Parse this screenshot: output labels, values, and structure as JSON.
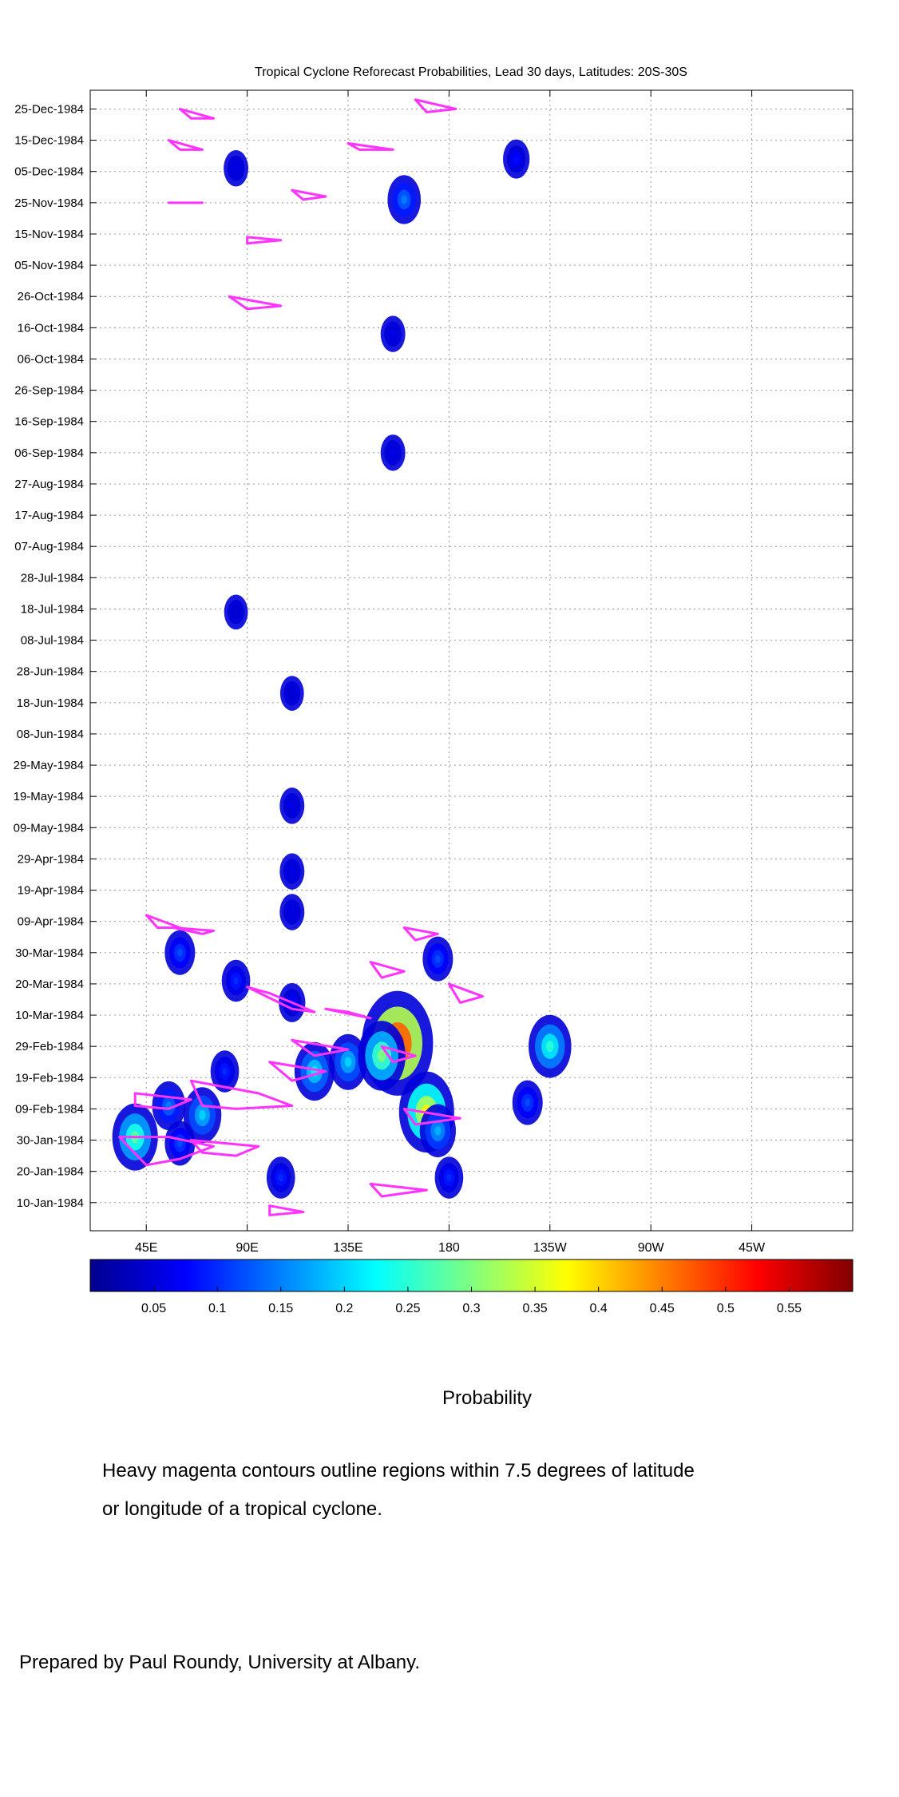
{
  "chart_data": {
    "type": "heatmap",
    "title": "Tropical Cyclone Reforecast Probabilities, Lead 30 days, Latitudes: 20S-30S",
    "x_axis": {
      "range_deg_east": [
        20,
        360
      ],
      "tick_positions_deg_east": [
        45,
        90,
        135,
        180,
        225,
        270,
        315
      ],
      "tick_labels": [
        "45E",
        "90E",
        "135E",
        "180",
        "135W",
        "90W",
        "45W"
      ]
    },
    "y_axis": {
      "range": [
        "1984-01-01",
        "1984-12-31"
      ],
      "tick_dates": [
        "1984-01-10",
        "1984-01-20",
        "1984-01-30",
        "1984-02-09",
        "1984-02-19",
        "1984-02-29",
        "1984-03-10",
        "1984-03-20",
        "1984-03-30",
        "1984-04-09",
        "1984-04-19",
        "1984-04-29",
        "1984-05-09",
        "1984-05-19",
        "1984-05-29",
        "1984-06-08",
        "1984-06-18",
        "1984-06-28",
        "1984-07-08",
        "1984-07-18",
        "1984-07-28",
        "1984-08-07",
        "1984-08-17",
        "1984-08-27",
        "1984-09-06",
        "1984-09-16",
        "1984-09-26",
        "1984-10-06",
        "1984-10-16",
        "1984-10-26",
        "1984-11-05",
        "1984-11-15",
        "1984-11-25",
        "1984-12-05",
        "1984-12-15",
        "1984-12-25"
      ],
      "tick_labels": [
        "10-Jan-1984",
        "20-Jan-1984",
        "30-Jan-1984",
        "09-Feb-1984",
        "19-Feb-1984",
        "29-Feb-1984",
        "10-Mar-1984",
        "20-Mar-1984",
        "30-Mar-1984",
        "09-Apr-1984",
        "19-Apr-1984",
        "29-Apr-1984",
        "09-May-1984",
        "19-May-1984",
        "29-May-1984",
        "08-Jun-1984",
        "18-Jun-1984",
        "28-Jun-1984",
        "08-Jul-1984",
        "18-Jul-1984",
        "28-Jul-1984",
        "07-Aug-1984",
        "17-Aug-1984",
        "27-Aug-1984",
        "06-Sep-1984",
        "16-Sep-1984",
        "26-Sep-1984",
        "06-Oct-1984",
        "16-Oct-1984",
        "26-Oct-1984",
        "05-Nov-1984",
        "15-Nov-1984",
        "25-Nov-1984",
        "05-Dec-1984",
        "15-Dec-1984",
        "25-Dec-1984"
      ]
    },
    "grid": true,
    "colorbar": {
      "label": "Probability",
      "range": [
        0,
        0.6
      ],
      "tick_values": [
        0.05,
        0.1,
        0.15,
        0.2,
        0.25,
        0.3,
        0.35,
        0.4,
        0.45,
        0.5,
        0.55
      ],
      "tick_labels": [
        "0.05",
        "0.1",
        "0.15",
        "0.2",
        "0.25",
        "0.3",
        "0.35",
        "0.4",
        "0.45",
        "0.5",
        "0.55"
      ],
      "colormap": "jet"
    },
    "probability_blobs": [
      {
        "lon": 60,
        "date": "1984-01-29",
        "p": 0.12
      },
      {
        "lon": 40,
        "date": "1984-01-31",
        "p": 0.28
      },
      {
        "lon": 70,
        "date": "1984-02-07",
        "p": 0.2
      },
      {
        "lon": 55,
        "date": "1984-02-10",
        "p": 0.15
      },
      {
        "lon": 80,
        "date": "1984-02-21",
        "p": 0.1
      },
      {
        "lon": 120,
        "date": "1984-02-21",
        "p": 0.22
      },
      {
        "lon": 135,
        "date": "1984-02-24",
        "p": 0.2
      },
      {
        "lon": 157,
        "date": "1984-03-01",
        "p": 0.55
      },
      {
        "lon": 150,
        "date": "1984-02-26",
        "p": 0.3
      },
      {
        "lon": 170,
        "date": "1984-02-08",
        "p": 0.38
      },
      {
        "lon": 175,
        "date": "1984-02-02",
        "p": 0.18
      },
      {
        "lon": 225,
        "date": "1984-02-29",
        "p": 0.25
      },
      {
        "lon": 215,
        "date": "1984-02-11",
        "p": 0.12
      },
      {
        "lon": 85,
        "date": "1984-03-21",
        "p": 0.1
      },
      {
        "lon": 175,
        "date": "1984-03-28",
        "p": 0.12
      },
      {
        "lon": 60,
        "date": "1984-03-30",
        "p": 0.12
      },
      {
        "lon": 110,
        "date": "1984-03-14",
        "p": 0.08
      },
      {
        "lon": 105,
        "date": "1984-01-18",
        "p": 0.1
      },
      {
        "lon": 180,
        "date": "1984-01-18",
        "p": 0.1
      },
      {
        "lon": 110,
        "date": "1984-04-12",
        "p": 0.06
      },
      {
        "lon": 110,
        "date": "1984-04-25",
        "p": 0.06
      },
      {
        "lon": 110,
        "date": "1984-05-16",
        "p": 0.06
      },
      {
        "lon": 110,
        "date": "1984-06-21",
        "p": 0.05
      },
      {
        "lon": 155,
        "date": "1984-09-06",
        "p": 0.06
      },
      {
        "lon": 155,
        "date": "1984-10-14",
        "p": 0.06
      },
      {
        "lon": 160,
        "date": "1984-11-26",
        "p": 0.15
      },
      {
        "lon": 210,
        "date": "1984-12-09",
        "p": 0.08
      },
      {
        "lon": 85,
        "date": "1984-12-06",
        "p": 0.06
      },
      {
        "lon": 85,
        "date": "1984-07-17",
        "p": 0.05
      }
    ],
    "cyclone_contours": [
      [
        [
          33,
          "1984-01-31"
        ],
        [
          55,
          "1984-01-31"
        ],
        [
          75,
          "1984-01-28"
        ],
        [
          60,
          "1984-01-24"
        ],
        [
          45,
          "1984-01-22"
        ]
      ],
      [
        [
          65,
          "1984-01-30"
        ],
        [
          95,
          "1984-01-28"
        ],
        [
          85,
          "1984-01-25"
        ],
        [
          70,
          "1984-01-26"
        ]
      ],
      [
        [
          40,
          "1984-02-14"
        ],
        [
          65,
          "1984-02-12"
        ],
        [
          55,
          "1984-02-09"
        ],
        [
          40,
          "1984-02-10"
        ]
      ],
      [
        [
          65,
          "1984-02-18"
        ],
        [
          95,
          "1984-02-14"
        ],
        [
          110,
          "1984-02-10"
        ],
        [
          85,
          "1984-02-09"
        ],
        [
          70,
          "1984-02-10"
        ]
      ],
      [
        [
          100,
          "1984-02-24"
        ],
        [
          125,
          "1984-02-21"
        ],
        [
          110,
          "1984-02-18"
        ]
      ],
      [
        [
          110,
          "1984-03-02"
        ],
        [
          135,
          "1984-02-28"
        ],
        [
          120,
          "1984-02-26"
        ]
      ],
      [
        [
          90,
          "1984-03-19"
        ],
        [
          110,
          "1984-03-12"
        ],
        [
          120,
          "1984-03-11"
        ],
        [
          100,
          "1984-03-17"
        ]
      ],
      [
        [
          125,
          "1984-03-12"
        ],
        [
          145,
          "1984-03-09"
        ],
        [
          135,
          "1984-03-11"
        ]
      ],
      [
        [
          145,
          "1984-03-27"
        ],
        [
          160,
          "1984-03-24"
        ],
        [
          150,
          "1984-03-22"
        ]
      ],
      [
        [
          160,
          "1984-04-07"
        ],
        [
          175,
          "1984-04-05"
        ],
        [
          165,
          "1984-04-03"
        ]
      ],
      [
        [
          45,
          "1984-04-11"
        ],
        [
          60,
          "1984-04-07"
        ],
        [
          50,
          "1984-04-07"
        ]
      ],
      [
        [
          57,
          "1984-04-07"
        ],
        [
          75,
          "1984-04-06"
        ],
        [
          70,
          "1984-04-05"
        ]
      ],
      [
        [
          180,
          "1984-03-20"
        ],
        [
          195,
          "1984-03-16"
        ],
        [
          185,
          "1984-03-14"
        ]
      ],
      [
        [
          150,
          "1984-02-29"
        ],
        [
          165,
          "1984-02-26"
        ],
        [
          155,
          "1984-02-24"
        ]
      ],
      [
        [
          160,
          "1984-02-09"
        ],
        [
          185,
          "1984-02-06"
        ],
        [
          165,
          "1984-02-04"
        ]
      ],
      [
        [
          145,
          "1984-01-16"
        ],
        [
          170,
          "1984-01-14"
        ],
        [
          150,
          "1984-01-12"
        ]
      ],
      [
        [
          100,
          "1984-01-09"
        ],
        [
          115,
          "1984-01-07"
        ],
        [
          100,
          "1984-01-06"
        ]
      ],
      [
        [
          55,
          "1984-12-15"
        ],
        [
          70,
          "1984-12-12"
        ],
        [
          60,
          "1984-12-12"
        ]
      ],
      [
        [
          135,
          "1984-12-14"
        ],
        [
          155,
          "1984-12-12"
        ],
        [
          140,
          "1984-12-12"
        ]
      ],
      [
        [
          110,
          "1984-11-29"
        ],
        [
          125,
          "1984-11-27"
        ],
        [
          115,
          "1984-11-26"
        ]
      ],
      [
        [
          82,
          "1984-10-26"
        ],
        [
          105,
          "1984-10-23"
        ],
        [
          90,
          "1984-10-22"
        ]
      ],
      [
        [
          90,
          "1984-11-14"
        ],
        [
          105,
          "1984-11-13"
        ],
        [
          90,
          "1984-11-12"
        ]
      ],
      [
        [
          55,
          "1984-11-25"
        ],
        [
          70,
          "1984-11-25"
        ]
      ],
      [
        [
          60,
          "1984-12-25"
        ],
        [
          75,
          "1984-12-22"
        ],
        [
          65,
          "1984-12-22"
        ]
      ],
      [
        [
          165,
          "1984-12-28"
        ],
        [
          183,
          "1984-12-25"
        ],
        [
          170,
          "1984-12-24"
        ]
      ]
    ]
  },
  "caption": {
    "line1": "Heavy magenta contours outline regions within 7.5 degrees of latitude",
    "line2": "or longitude of a tropical cyclone."
  },
  "credit": "Prepared by Paul Roundy, University at Albany.",
  "colors": {
    "contour": "#ff33ff",
    "grid": "#999999"
  }
}
